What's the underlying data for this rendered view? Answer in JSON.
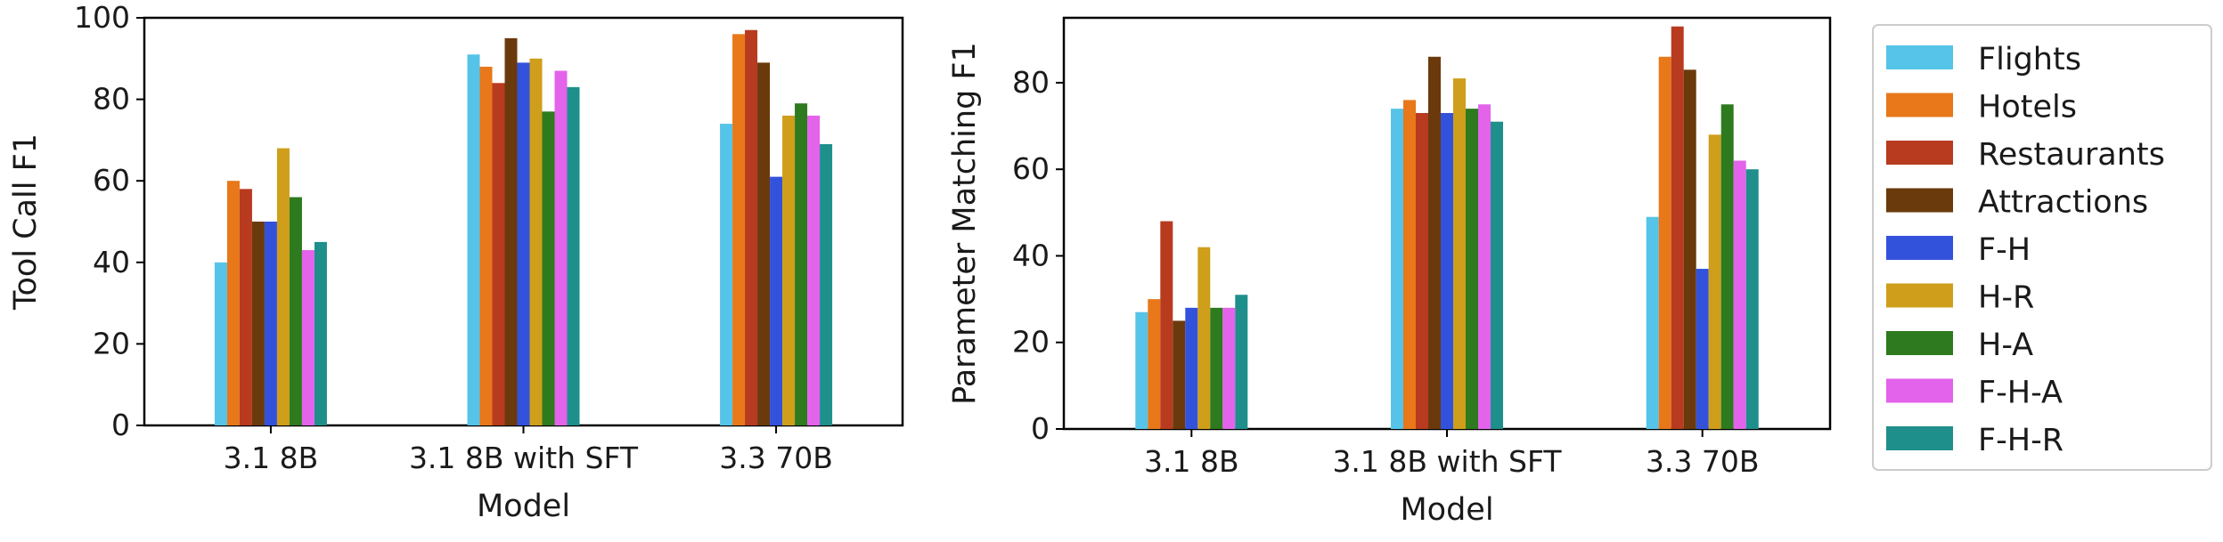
{
  "chart_data": [
    {
      "type": "bar",
      "title": "",
      "xlabel": "Model",
      "ylabel": "Tool Call F1",
      "ylim": [
        0,
        100
      ],
      "yticks": [
        0,
        20,
        40,
        60,
        80,
        100
      ],
      "categories": [
        "3.1 8B",
        "3.1 8B with SFT",
        "3.3 70B"
      ],
      "series": [
        {
          "name": "Flights",
          "values": [
            40,
            91,
            74
          ]
        },
        {
          "name": "Hotels",
          "values": [
            60,
            88,
            96
          ]
        },
        {
          "name": "Restaurants",
          "values": [
            58,
            84,
            97
          ]
        },
        {
          "name": "Attractions",
          "values": [
            50,
            95,
            89
          ]
        },
        {
          "name": "F-H",
          "values": [
            50,
            89,
            61
          ]
        },
        {
          "name": "H-R",
          "values": [
            68,
            90,
            76
          ]
        },
        {
          "name": "H-A",
          "values": [
            56,
            77,
            79
          ]
        },
        {
          "name": "F-H-A",
          "values": [
            43,
            87,
            76
          ]
        },
        {
          "name": "F-H-R",
          "values": [
            45,
            83,
            69
          ]
        }
      ]
    },
    {
      "type": "bar",
      "title": "",
      "xlabel": "Model",
      "ylabel": "Parameter Matching F1",
      "ylim": [
        0,
        95
      ],
      "yticks": [
        0,
        20,
        40,
        60,
        80
      ],
      "categories": [
        "3.1 8B",
        "3.1 8B with SFT",
        "3.3 70B"
      ],
      "series": [
        {
          "name": "Flights",
          "values": [
            27,
            74,
            49
          ]
        },
        {
          "name": "Hotels",
          "values": [
            30,
            76,
            86
          ]
        },
        {
          "name": "Restaurants",
          "values": [
            48,
            73,
            93
          ]
        },
        {
          "name": "Attractions",
          "values": [
            25,
            86,
            83
          ]
        },
        {
          "name": "F-H",
          "values": [
            28,
            73,
            37
          ]
        },
        {
          "name": "H-R",
          "values": [
            42,
            81,
            68
          ]
        },
        {
          "name": "H-A",
          "values": [
            28,
            74,
            75
          ]
        },
        {
          "name": "F-H-A",
          "values": [
            28,
            75,
            62
          ]
        },
        {
          "name": "F-H-R",
          "values": [
            31,
            71,
            60
          ]
        }
      ]
    }
  ],
  "legend": {
    "position": "right",
    "entries": [
      {
        "label": "Flights",
        "color": "#56c4e8"
      },
      {
        "label": "Hotels",
        "color": "#e8781a"
      },
      {
        "label": "Restaurants",
        "color": "#b83a1f"
      },
      {
        "label": "Attractions",
        "color": "#6b3a0c"
      },
      {
        "label": "F-H",
        "color": "#3352dc"
      },
      {
        "label": "H-R",
        "color": "#cf9e1a"
      },
      {
        "label": "H-A",
        "color": "#2e7a1e"
      },
      {
        "label": "F-H-A",
        "color": "#e363ea"
      },
      {
        "label": "F-H-R",
        "color": "#1f8f8c"
      }
    ]
  }
}
